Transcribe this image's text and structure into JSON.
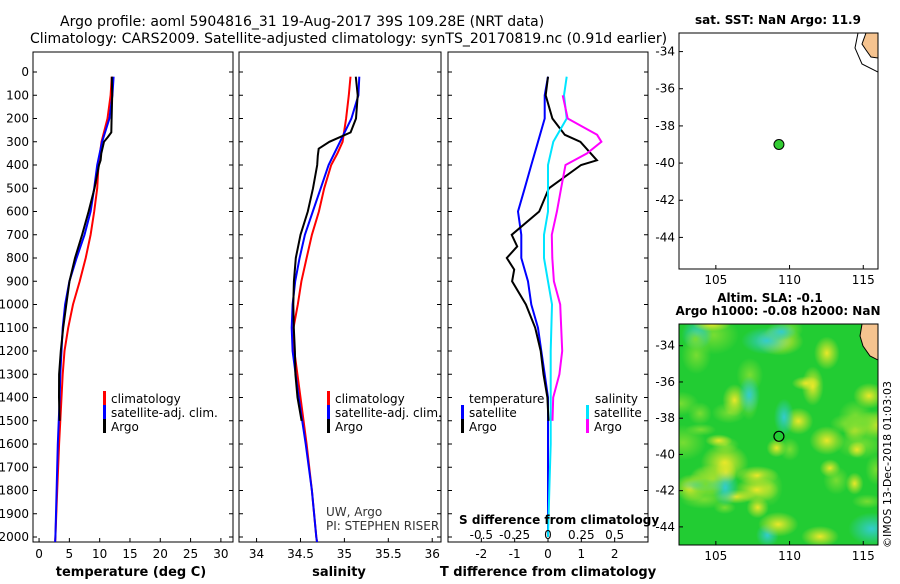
{
  "header": {
    "line1": "Argo profile: aoml 5904816_31 19-Aug-2017 39S 109.28E (NRT data)",
    "line2": "Climatology: CARS2009. Satellite-adjusted climatology: synTS_20170819.nc (0.91d earlier)"
  },
  "colors": {
    "climatology": "#ff0000",
    "satellite": "#0000ff",
    "argo": "#000000",
    "sat_salinity": "#00e5ff",
    "argo_salinity": "#ff00ff",
    "land": "#f5c38f",
    "ocean_field": "#22cc33",
    "float_marker": "#33cc33"
  },
  "depth_ticks": [
    "0",
    "100",
    "200",
    "300",
    "400",
    "500",
    "600",
    "700",
    "800",
    "900",
    "1000",
    "1100",
    "1200",
    "1300",
    "1400",
    "1500",
    "1600",
    "1700",
    "1800",
    "1900",
    "2000"
  ],
  "legend": {
    "climatology": "climatology",
    "satellite_adj": "satellite-adj. clim.",
    "argo": "Argo",
    "temperature": "temperature",
    "salinity": "salinity",
    "satellite": "satellite"
  },
  "credits": {
    "line1": "UW, Argo",
    "line2": "PI: STEPHEN RISER"
  },
  "diff_panel": {
    "s_label": "S difference from climatology",
    "s_ticks": [
      "-0.5",
      "-0.25",
      "0",
      "0.25",
      "0.5"
    ],
    "t_label": "T difference from climatology"
  },
  "map_top": {
    "title": "sat. SST: NaN Argo: 11.9"
  },
  "map_bottom": {
    "title1": "Altim. SLA: -0.1",
    "title2": "Argo h1000: -0.08 h2000: NaN"
  },
  "map_lat_ticks": [
    "-34",
    "-36",
    "-38",
    "-40",
    "-42",
    "-44"
  ],
  "map_lon_ticks": [
    "105",
    "110",
    "115"
  ],
  "watermark": "©IMOS 13-Dec-2018 01:03:03",
  "chart_data": [
    {
      "type": "line",
      "xlabel": "temperature (deg C)",
      "ylabel": "",
      "xlim": [
        -1,
        32
      ],
      "ylim": [
        2060,
        0
      ],
      "x_ticks": [
        "0",
        "5",
        "10",
        "15",
        "20",
        "25",
        "30"
      ],
      "y_reversed": true,
      "series": [
        {
          "name": "climatology",
          "depth": [
            20,
            100,
            200,
            300,
            400,
            500,
            600,
            700,
            800,
            900,
            1000,
            1100,
            1200,
            1300,
            1400,
            1600,
            1800,
            2000,
            2050
          ],
          "values": [
            12.0,
            11.8,
            11.3,
            10.3,
            9.8,
            9.6,
            9.1,
            8.5,
            7.7,
            6.7,
            5.6,
            4.8,
            4.2,
            3.9,
            3.7,
            3.3,
            3.0,
            2.7,
            2.6
          ]
        },
        {
          "name": "satellite-adj. clim.",
          "depth": [
            20,
            100,
            200,
            300,
            400,
            500,
            600,
            700,
            800,
            900,
            1000,
            1100,
            1200,
            1300,
            1400,
            1600,
            1800,
            2000,
            2050
          ],
          "values": [
            12.3,
            12.1,
            11.6,
            10.4,
            9.6,
            9.1,
            8.5,
            7.5,
            6.2,
            5.0,
            4.3,
            3.9,
            3.7,
            3.5,
            3.4,
            3.1,
            2.9,
            2.7,
            2.6
          ]
        },
        {
          "name": "Argo",
          "depth": [
            20,
            100,
            200,
            260,
            280,
            300,
            350,
            380,
            400,
            500,
            600,
            700,
            800,
            900,
            1000,
            1100,
            1200,
            1300,
            1400,
            1500
          ],
          "values": [
            12.0,
            11.9,
            11.8,
            11.9,
            11.5,
            10.9,
            10.3,
            10.0,
            9.7,
            9.1,
            8.3,
            7.3,
            6.0,
            4.9,
            4.3,
            3.9,
            3.7,
            3.5,
            3.4,
            3.3
          ]
        }
      ]
    },
    {
      "type": "line",
      "xlabel": "salinity",
      "ylabel": "",
      "xlim": [
        33.8,
        36.1
      ],
      "ylim": [
        2060,
        0
      ],
      "x_ticks": [
        "34",
        "34.5",
        "35",
        "35.5",
        "36"
      ],
      "y_reversed": true,
      "series": [
        {
          "name": "climatology",
          "depth": [
            20,
            100,
            200,
            300,
            350,
            400,
            500,
            600,
            700,
            800,
            900,
            1000,
            1100,
            1200,
            1400,
            1600,
            1800,
            2000,
            2050
          ],
          "values": [
            35.07,
            35.05,
            35.02,
            34.98,
            34.92,
            34.85,
            34.77,
            34.71,
            34.63,
            34.57,
            34.51,
            34.47,
            34.42,
            34.43,
            34.5,
            34.57,
            34.63,
            34.68,
            34.7
          ]
        },
        {
          "name": "satellite-adj. clim.",
          "depth": [
            20,
            100,
            200,
            300,
            400,
            500,
            600,
            700,
            800,
            900,
            1000,
            1100,
            1200,
            1400,
            1600,
            1800,
            2000,
            2050
          ],
          "values": [
            35.17,
            35.16,
            35.08,
            34.95,
            34.82,
            34.73,
            34.64,
            34.55,
            34.49,
            34.44,
            34.41,
            34.4,
            34.41,
            34.48,
            34.56,
            34.63,
            34.68,
            34.7
          ]
        },
        {
          "name": "Argo",
          "depth": [
            20,
            100,
            200,
            260,
            300,
            330,
            360,
            400,
            500,
            600,
            700,
            800,
            900,
            1000,
            1100,
            1200,
            1300,
            1400,
            1500
          ],
          "values": [
            35.13,
            35.14,
            35.12,
            35.07,
            34.84,
            34.72,
            34.7,
            34.68,
            34.63,
            34.58,
            34.51,
            34.46,
            34.43,
            34.41,
            34.41,
            34.43,
            34.45,
            34.48,
            34.52
          ]
        }
      ]
    },
    {
      "type": "line",
      "xlabel": "T difference from climatology",
      "ylabel": "",
      "xlim": [
        -3,
        3
      ],
      "ylim": [
        2060,
        0
      ],
      "x_ticks": [
        "-2",
        "-1",
        "0",
        "1",
        "2"
      ],
      "y_reversed": true,
      "series": [
        {
          "name": "temperature satellite",
          "depth": [
            20,
            100,
            200,
            300,
            400,
            500,
            600,
            700,
            800,
            900,
            1000,
            1100,
            1200,
            1300,
            1400,
            1500,
            1600,
            1800,
            2000
          ],
          "values": [
            0.0,
            -0.1,
            -0.1,
            -0.3,
            -0.5,
            -0.7,
            -0.9,
            -0.8,
            -0.8,
            -0.6,
            -0.5,
            -0.3,
            -0.2,
            -0.1,
            0.0,
            0.0,
            0.0,
            0.0,
            0.0
          ]
        },
        {
          "name": "temperature Argo",
          "depth": [
            20,
            100,
            200,
            270,
            300,
            380,
            400,
            500,
            600,
            700,
            750,
            800,
            850,
            900,
            1000,
            1100,
            1200,
            1300,
            1400,
            1500
          ],
          "values": [
            0.0,
            -0.1,
            0.1,
            0.5,
            1.0,
            1.5,
            1.0,
            0.0,
            -0.3,
            -1.1,
            -0.9,
            -1.2,
            -1.0,
            -1.1,
            -0.7,
            -0.4,
            -0.2,
            -0.1,
            0.0,
            0.0
          ]
        },
        {
          "name": "salinity satellite",
          "depth": [
            20,
            100,
            200,
            300,
            400,
            500,
            600,
            700,
            800,
            900,
            1000,
            1200,
            1400,
            1600,
            1800,
            2000
          ],
          "values": [
            0.14,
            0.12,
            0.14,
            0.04,
            0.0,
            0.0,
            0.0,
            -0.03,
            -0.03,
            0.0,
            0.03,
            0.02,
            0.02,
            0.02,
            0.01,
            0.0
          ]
        },
        {
          "name": "salinity Argo",
          "depth": [
            100,
            200,
            270,
            300,
            350,
            400,
            500,
            600,
            700,
            800,
            900,
            1000,
            1200,
            1300,
            1400,
            1500
          ],
          "values": [
            0.11,
            0.14,
            0.36,
            0.4,
            0.3,
            0.14,
            0.1,
            0.06,
            0.02,
            0.03,
            0.05,
            0.1,
            0.11,
            0.08,
            0.03,
            0.03
          ]
        }
      ]
    },
    {
      "type": "scatter",
      "title": "sat. SST: NaN Argo: 11.9",
      "xlim": [
        102.5,
        116.0
      ],
      "ylim": [
        -45.7,
        -33.0
      ],
      "x": [
        109.28
      ],
      "y": [
        -39.0
      ]
    },
    {
      "type": "heatmap",
      "title": "Argo h1000: -0.08 h2000: NaN",
      "xlim": [
        102.5,
        116.0
      ],
      "ylim": [
        -45.0,
        -32.8
      ],
      "x": [
        109.28
      ],
      "y": [
        -39.0
      ]
    }
  ]
}
